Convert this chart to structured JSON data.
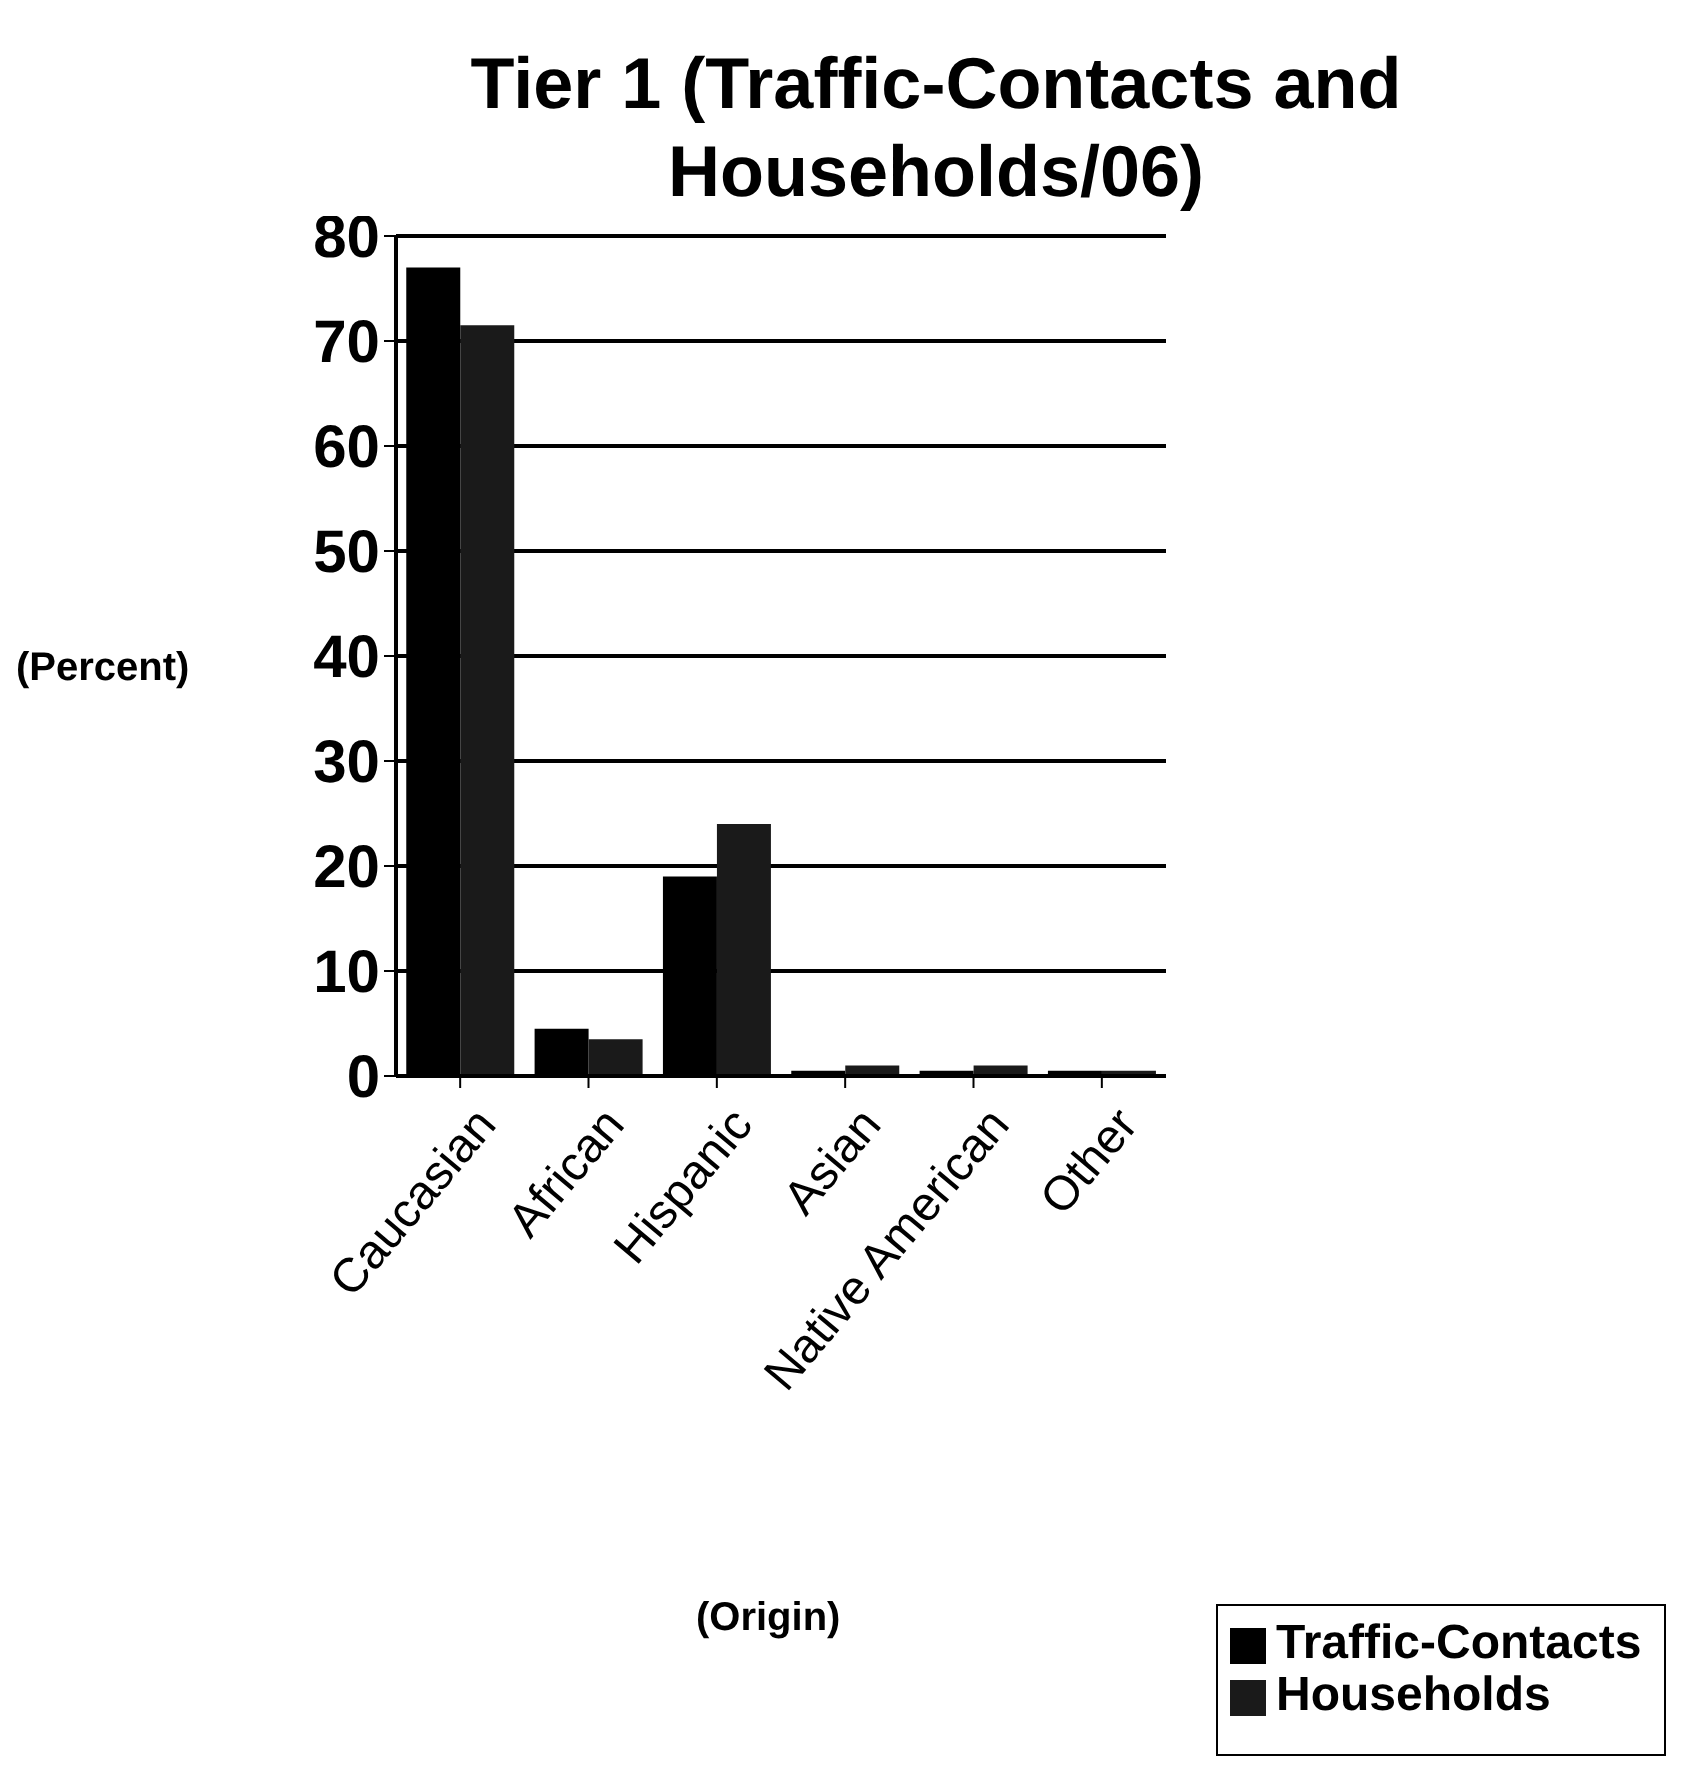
{
  "chart_data": {
    "type": "bar",
    "title": "Tier 1 (Traffic-Contacts and Households/06)",
    "xlabel": "(Origin)",
    "ylabel": "(Percent)",
    "categories": [
      "Caucasian",
      "African",
      "Hispanic",
      "Asian",
      "Native American",
      "Other"
    ],
    "series": [
      {
        "name": "Traffic-Contacts",
        "color": "#000000",
        "values": [
          77,
          4.5,
          19,
          0.5,
          0.5,
          0.5
        ]
      },
      {
        "name": "Households",
        "color": "#1a1a1a",
        "values": [
          71.5,
          3.5,
          24,
          1,
          1,
          0.5
        ]
      }
    ],
    "ylim": [
      0,
      80
    ],
    "yticks": [
      0,
      10,
      20,
      30,
      40,
      50,
      60,
      70,
      80
    ],
    "grid": "y",
    "legend": "bottom right"
  }
}
